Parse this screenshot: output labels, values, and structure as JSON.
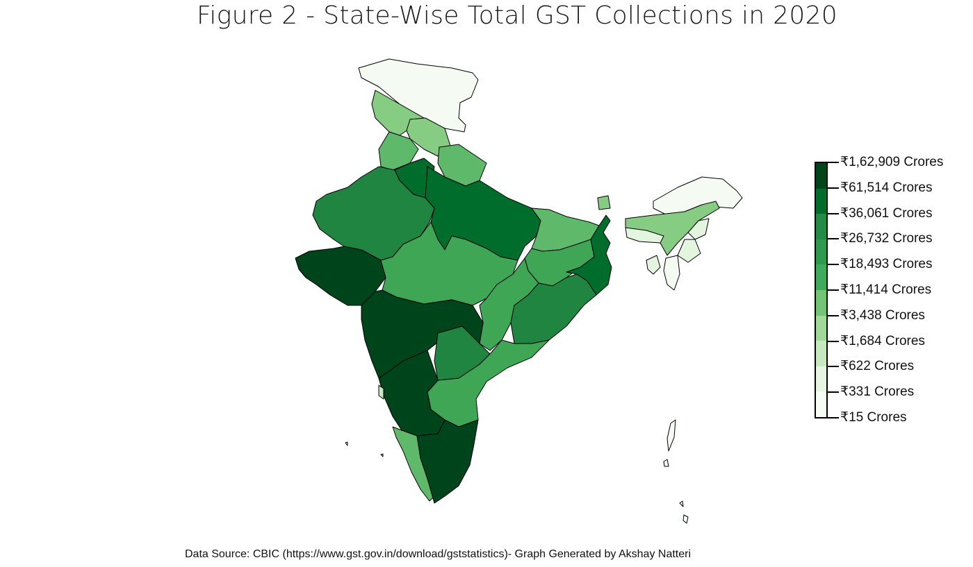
{
  "title": "Figure 2 - State-Wise Total GST Collections in 2020",
  "source_text": "Data Source: CBIC (https://www.gst.gov.in/download/gststatistics)- Graph Generated by Akshay Natteri",
  "legend": {
    "labels": [
      "₹1,62,909 Crores",
      "₹61,514 Crores",
      "₹36,061 Crores",
      "₹26,732 Crores",
      "₹18,493 Crores",
      "₹11,414 Crores",
      "₹3,438 Crores",
      "₹1,684 Crores",
      "₹622 Crores",
      "₹331 Crores",
      "₹15 Crores"
    ],
    "colors": [
      "#00441b",
      "#006d2c",
      "#238b45",
      "#2f9a4f",
      "#41ab5d",
      "#74c476",
      "#a1d99b",
      "#c7e9c0",
      "#e5f5e0",
      "#f7fcf5"
    ]
  },
  "palette": {
    "darkest": "#00441b",
    "dark": "#006d2c",
    "mid_dark": "#1f8540",
    "mid": "#3fa656",
    "mid_light": "#5fb96b",
    "light": "#86cc82",
    "pale": "#e3f4df",
    "palest": "#f5fbf3"
  }
}
